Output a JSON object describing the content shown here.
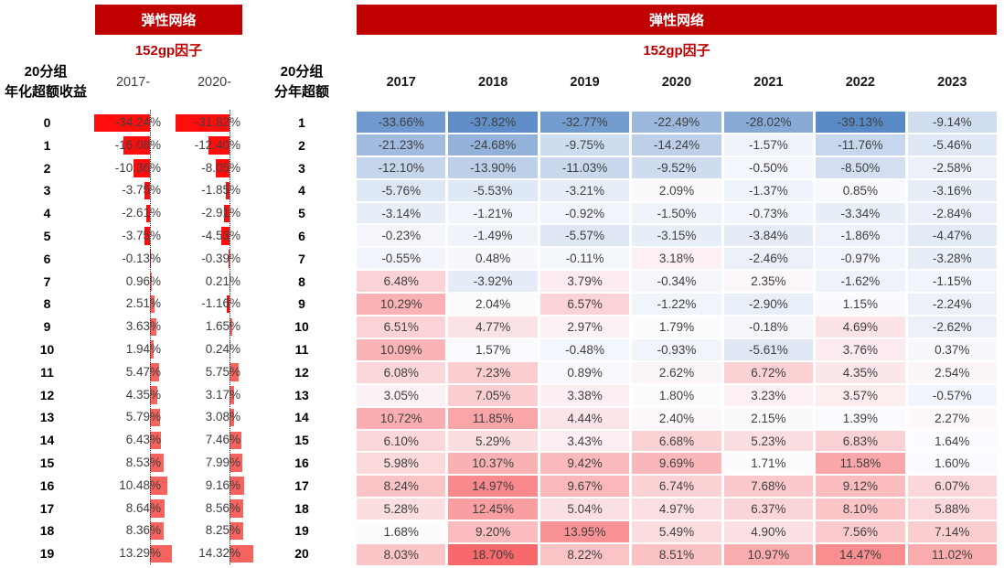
{
  "colors": {
    "banner_bg": "#C00000",
    "banner_text": "#FFFFFF",
    "subtitle_text": "#C00000",
    "value_text": "#3F3F3F",
    "neg_bar": "#FF0D0D",
    "pos_bar": "#F4635D",
    "heat_min": "#5A8AC6",
    "heat_mid": "#FCFCFF",
    "heat_max": "#F8696B"
  },
  "left_table": {
    "banner": "弹性网络",
    "subtitle": "152gp因子",
    "row_header_line1": "20分组",
    "row_header_line2": "年化超额收益",
    "columns": [
      "2017-",
      "2020-"
    ]
  },
  "right_table": {
    "banner": "弹性网络",
    "subtitle": "152gp因子",
    "row_header_line1": "20分组",
    "row_header_line2": "分年超额",
    "columns": [
      "2017",
      "2018",
      "2019",
      "2020",
      "2021",
      "2022",
      "2023"
    ]
  },
  "chart_data": [
    {
      "type": "bar",
      "title": "弹性网络 152gp因子 20分组年化超额收益",
      "orientation": "horizontal",
      "unit": "%",
      "categories": [
        "0",
        "1",
        "2",
        "3",
        "4",
        "5",
        "6",
        "7",
        "8",
        "9",
        "10",
        "11",
        "12",
        "13",
        "14",
        "15",
        "16",
        "17",
        "18",
        "19"
      ],
      "series": [
        {
          "name": "2017-",
          "values": [
            -34.24,
            -16.08,
            -10.36,
            -3.75,
            -2.61,
            -3.75,
            -0.13,
            0.96,
            2.51,
            3.63,
            1.94,
            5.47,
            4.35,
            5.79,
            6.43,
            8.53,
            10.48,
            8.64,
            8.36,
            13.29
          ]
        },
        {
          "name": "2020-",
          "values": [
            -31.82,
            -12.4,
            -8.05,
            -1.85,
            -2.91,
            -4.53,
            -0.39,
            0.21,
            -1.16,
            1.65,
            0.24,
            5.75,
            3.17,
            3.08,
            7.46,
            7.99,
            9.16,
            8.56,
            8.25,
            14.32
          ]
        }
      ],
      "bar_colors": {
        "negative": "#FF0D0D",
        "positive": "#F4635D"
      },
      "axis_style": "dotted zero-axis per column, bars left for negative / right for positive"
    },
    {
      "type": "heatmap",
      "title": "弹性网络 152gp因子 20分组分年超额",
      "unit": "%",
      "rows": [
        "1",
        "2",
        "3",
        "4",
        "5",
        "6",
        "7",
        "8",
        "9",
        "10",
        "11",
        "12",
        "13",
        "14",
        "15",
        "16",
        "17",
        "18",
        "19",
        "20"
      ],
      "columns": [
        "2017",
        "2018",
        "2019",
        "2020",
        "2021",
        "2022",
        "2023"
      ],
      "values": [
        [
          -33.66,
          -37.82,
          -32.77,
          -22.49,
          -28.02,
          -39.13,
          -9.14
        ],
        [
          -21.23,
          -24.68,
          -9.75,
          -14.24,
          -1.57,
          -11.76,
          -5.46
        ],
        [
          -12.1,
          -13.9,
          -11.03,
          -9.52,
          -0.5,
          -8.5,
          -2.58
        ],
        [
          -5.76,
          -5.53,
          -3.21,
          2.09,
          -1.37,
          0.85,
          -3.16
        ],
        [
          -3.14,
          -1.21,
          -0.92,
          -1.5,
          -0.73,
          -3.34,
          -2.84
        ],
        [
          -0.23,
          -1.49,
          -5.57,
          -3.15,
          -3.84,
          -1.86,
          -4.47
        ],
        [
          -0.55,
          0.48,
          -0.11,
          3.18,
          -2.46,
          -0.97,
          -3.28
        ],
        [
          6.48,
          -3.92,
          3.79,
          -0.34,
          2.35,
          -1.62,
          -1.15
        ],
        [
          10.29,
          2.04,
          6.57,
          -1.22,
          -2.9,
          1.15,
          -2.24
        ],
        [
          6.51,
          4.77,
          2.97,
          1.79,
          -0.18,
          4.69,
          -2.62
        ],
        [
          10.09,
          1.57,
          -0.48,
          -0.93,
          -5.61,
          3.76,
          0.37
        ],
        [
          6.08,
          7.23,
          0.89,
          2.62,
          6.72,
          4.35,
          2.54
        ],
        [
          3.05,
          7.05,
          3.38,
          1.8,
          3.23,
          3.57,
          -0.57
        ],
        [
          10.72,
          11.85,
          4.44,
          2.4,
          2.15,
          1.39,
          2.27
        ],
        [
          6.1,
          5.29,
          3.43,
          6.68,
          5.23,
          6.83,
          1.64
        ],
        [
          5.98,
          10.37,
          9.42,
          9.69,
          1.71,
          11.58,
          1.6
        ],
        [
          8.24,
          14.97,
          9.67,
          6.74,
          7.68,
          9.12,
          6.07
        ],
        [
          5.28,
          12.45,
          5.04,
          4.97,
          6.37,
          8.1,
          5.88
        ],
        [
          1.68,
          9.2,
          13.95,
          5.49,
          4.9,
          7.56,
          7.14
        ],
        [
          8.03,
          18.7,
          8.22,
          8.51,
          10.97,
          14.47,
          11.02
        ]
      ],
      "colorscale": {
        "min_color": "#5A8AC6",
        "mid_color": "#FCFCFF",
        "max_color": "#F8696B",
        "midpoint": "median"
      },
      "legend": "none",
      "grid": "off"
    }
  ]
}
